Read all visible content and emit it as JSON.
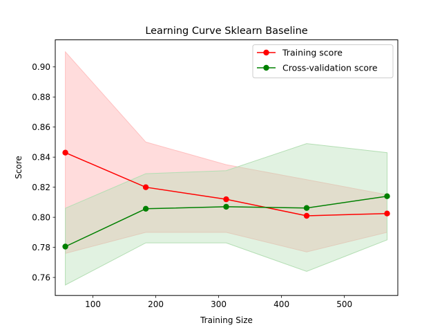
{
  "chart_data": {
    "type": "line",
    "title": "Learning Curve Sklearn Baseline",
    "xlabel": "Training Size",
    "ylabel": "Score",
    "xlim": [
      40,
      585
    ],
    "ylim": [
      0.748,
      0.918
    ],
    "xticks": [
      100,
      200,
      300,
      400,
      500
    ],
    "yticks": [
      0.76,
      0.78,
      0.8,
      0.82,
      0.84,
      0.86,
      0.88,
      0.9
    ],
    "ytick_labels": [
      "0.76",
      "0.78",
      "0.80",
      "0.82",
      "0.84",
      "0.86",
      "0.88",
      "0.90"
    ],
    "x": [
      56,
      184,
      312,
      440,
      568
    ],
    "grid": false,
    "legend": "top-right",
    "series": [
      {
        "name": "Training score",
        "color": "#ff0000",
        "band_color": "#ffc0c0",
        "values": [
          0.843,
          0.82,
          0.812,
          0.801,
          0.8025
        ],
        "band_upper": [
          0.91,
          0.85,
          0.835,
          0.825,
          0.815
        ],
        "band_lower": [
          0.776,
          0.79,
          0.79,
          0.777,
          0.79
        ]
      },
      {
        "name": "Cross-validation score",
        "color": "#008000",
        "band_color": "#b3deb3",
        "values": [
          0.7805,
          0.8057,
          0.807,
          0.8062,
          0.814
        ],
        "band_upper": [
          0.806,
          0.829,
          0.831,
          0.849,
          0.843
        ],
        "band_lower": [
          0.755,
          0.783,
          0.783,
          0.764,
          0.785
        ]
      }
    ]
  }
}
